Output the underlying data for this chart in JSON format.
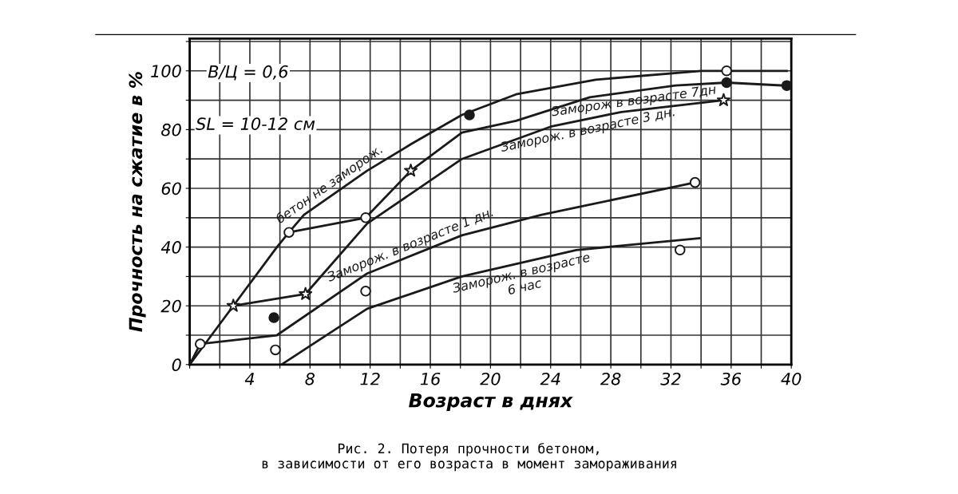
{
  "chart_data": {
    "type": "line",
    "xlabel": "Возраст в днях",
    "ylabel": "Прочность на сжатие в %",
    "xlim": [
      0,
      40
    ],
    "ylim": [
      0,
      111
    ],
    "xticks": [
      {
        "value": 0,
        "label": null
      },
      {
        "value": 2,
        "label": null
      },
      4,
      {
        "value": 6,
        "label": null
      },
      8,
      {
        "value": 10,
        "label": null
      },
      12,
      {
        "value": 14,
        "label": null
      },
      16,
      {
        "value": 18,
        "label": null
      },
      20,
      {
        "value": 22,
        "label": null
      },
      24,
      {
        "value": 26,
        "label": null
      },
      28,
      {
        "value": 30,
        "label": null
      },
      32,
      {
        "value": 34,
        "label": null
      },
      36,
      {
        "value": 38,
        "label": null
      },
      40
    ],
    "yticks": [
      0,
      {
        "value": 10,
        "label": null
      },
      20,
      {
        "value": 30,
        "label": null
      },
      40,
      {
        "value": 50,
        "label": null
      },
      60,
      {
        "value": 70,
        "label": null
      },
      80,
      {
        "value": 90,
        "label": null
      },
      100,
      {
        "value": 110,
        "label": null
      }
    ],
    "grid": true,
    "line_style": "solid",
    "series": [
      {
        "name": "бетон не заморож.",
        "color": "#1a1a1a",
        "marker": "none",
        "x": [
          0,
          2.9,
          5.8,
          6.6,
          7.6,
          11.8,
          14.7,
          18.1,
          21.7,
          27,
          34,
          35.7,
          39.7
        ],
        "values": [
          0,
          20,
          40,
          45,
          51,
          66,
          75,
          85,
          92,
          97,
          100,
          100,
          100
        ]
      },
      {
        "name": "Заморож в возрасте 7дн",
        "color": "#1a1a1a",
        "marker": "none",
        "x": [
          6.6,
          11.7,
          14.7,
          18.1,
          21.7,
          26.6,
          32.3,
          35.7,
          39.5
        ],
        "values": [
          45,
          50,
          66,
          79,
          83,
          91,
          95,
          96,
          95
        ]
      },
      {
        "name": "Заморож. в возрасте 3 дн.",
        "color": "#1a1a1a",
        "marker": "none",
        "x": [
          2.9,
          7.7,
          11.8,
          18.1,
          24,
          28.7,
          35.5
        ],
        "values": [
          20,
          24,
          48,
          70,
          81,
          86,
          90
        ]
      },
      {
        "name": "Заморож. в возрасте 1 дн.",
        "color": "#1a1a1a",
        "marker": "none",
        "x": [
          0,
          0.7,
          5.8,
          11.8,
          18.1,
          23.4,
          33.6
        ],
        "values": [
          0,
          7,
          10,
          31,
          44,
          51,
          62
        ]
      },
      {
        "name": "Заморож. в возрасте\n6 час",
        "color": "#1a1a1a",
        "marker": "none",
        "x": [
          6.1,
          8.8,
          11.8,
          18.1,
          25.7,
          33.9
        ],
        "values": [
          0,
          9,
          19,
          30,
          39,
          43
        ]
      },
      {
        "type": "scatter",
        "color": "#ffffff",
        "marker": "circle",
        "x": [
          0.7,
          6.6,
          11.7,
          5.7,
          11.7,
          32.6,
          35.7,
          33.6
        ],
        "values": [
          7,
          45,
          50,
          5,
          25,
          39,
          100,
          62
        ]
      },
      {
        "type": "scatter",
        "color": "#1a1a1a",
        "marker": "circle",
        "x": [
          5.6,
          18.6,
          35.7,
          39.7
        ],
        "values": [
          16,
          85,
          96,
          95
        ]
      },
      {
        "type": "scatter",
        "color": "#ffffff",
        "marker": "star",
        "x": [
          2.9,
          7.7,
          14.7,
          35.5
        ],
        "values": [
          20,
          24,
          66,
          90
        ]
      }
    ],
    "annotations": [
      "В/Ц = 0,6",
      "SL = 10-12 см",
      "Рис. 2. Потеря прочности бетоном,\nв зависимости от его возраста в момент замораживания"
    ]
  }
}
